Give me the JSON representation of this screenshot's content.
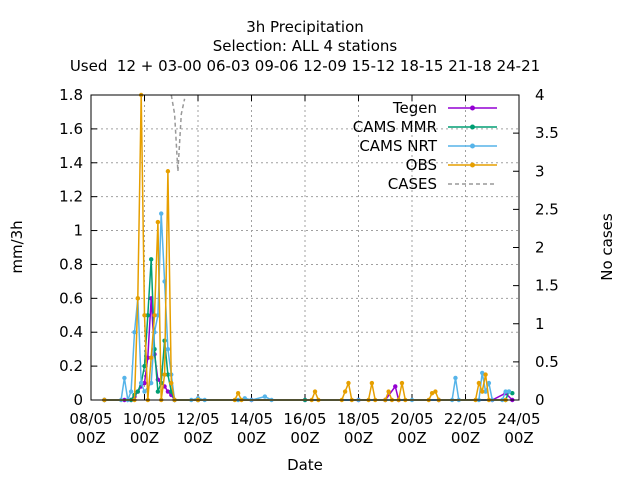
{
  "chart_data": {
    "type": "line",
    "title_lines": [
      "3h Precipitation",
      "Selection: ALL       4 stations",
      "Used  12 + 03-00 06-03 09-06 12-09 15-12 18-15 21-18 24-21"
    ],
    "xlabel": "Date",
    "ylabel": "mm/3h",
    "y2label": "No cases",
    "ylim": [
      0,
      1.8
    ],
    "y2lim": [
      0,
      4
    ],
    "xlim": [
      0,
      16
    ],
    "x_ticks": [
      {
        "x": 0,
        "label": [
          "08/05",
          "00Z"
        ]
      },
      {
        "x": 2,
        "label": [
          "10/05",
          "00Z"
        ]
      },
      {
        "x": 4,
        "label": [
          "12/05",
          "00Z"
        ]
      },
      {
        "x": 6,
        "label": [
          "14/05",
          "00Z"
        ]
      },
      {
        "x": 8,
        "label": [
          "16/05",
          "00Z"
        ]
      },
      {
        "x": 10,
        "label": [
          "18/05",
          "00Z"
        ]
      },
      {
        "x": 12,
        "label": [
          "20/05",
          "00Z"
        ]
      },
      {
        "x": 14,
        "label": [
          "22/05",
          "00Z"
        ]
      },
      {
        "x": 16,
        "label": [
          "24/05",
          "00Z"
        ]
      }
    ],
    "y_ticks": [
      "0",
      "0.2",
      "0.4",
      "0.6",
      "0.8",
      "1",
      "1.2",
      "1.4",
      "1.6",
      "1.8"
    ],
    "y2_ticks": [
      "0",
      "0.5",
      "1",
      "1.5",
      "2",
      "2.5",
      "3",
      "3.5",
      "4"
    ],
    "grid": true,
    "legend_position": "top-right",
    "series": [
      {
        "name": "Tegen",
        "color": "#9400d3",
        "axis": "y",
        "dashed": false,
        "points": [
          [
            0.5,
            0
          ],
          [
            1.25,
            0
          ],
          [
            1.5,
            0
          ],
          [
            1.625,
            0.02
          ],
          [
            1.75,
            0.05
          ],
          [
            1.875,
            0.08
          ],
          [
            2,
            0.1
          ],
          [
            2.125,
            0.25
          ],
          [
            2.25,
            0.6
          ],
          [
            2.375,
            0.27
          ],
          [
            2.5,
            0.12
          ],
          [
            2.625,
            0.1
          ],
          [
            2.75,
            0.08
          ],
          [
            2.875,
            0.05
          ],
          [
            3,
            0.03
          ],
          [
            3.125,
            0
          ],
          [
            4,
            0
          ],
          [
            6,
            0
          ],
          [
            8,
            0
          ],
          [
            10,
            0
          ],
          [
            11,
            0
          ],
          [
            11.375,
            0.08
          ],
          [
            11.5,
            0
          ],
          [
            13,
            0
          ],
          [
            15,
            0
          ],
          [
            15.5,
            0.04
          ],
          [
            15.75,
            0
          ]
        ]
      },
      {
        "name": "CAMS MMR",
        "color": "#009e73",
        "axis": "y",
        "dashed": false,
        "points": [
          [
            0.5,
            0
          ],
          [
            1.5,
            0
          ],
          [
            1.625,
            0.03
          ],
          [
            1.75,
            0.05
          ],
          [
            1.875,
            0.1
          ],
          [
            2,
            0.2
          ],
          [
            2.125,
            0.5
          ],
          [
            2.25,
            0.83
          ],
          [
            2.375,
            0.3
          ],
          [
            2.5,
            0.05
          ],
          [
            2.625,
            0.1
          ],
          [
            2.75,
            0.35
          ],
          [
            2.875,
            0.15
          ],
          [
            3,
            0.05
          ],
          [
            3.125,
            0
          ],
          [
            4,
            0
          ],
          [
            8,
            0
          ],
          [
            15.5,
            0
          ],
          [
            15.625,
            0.05
          ],
          [
            15.75,
            0.04
          ]
        ]
      },
      {
        "name": "CAMS NRT",
        "color": "#56b4e9",
        "axis": "y",
        "dashed": false,
        "points": [
          [
            0.5,
            0
          ],
          [
            1.125,
            0
          ],
          [
            1.25,
            0.13
          ],
          [
            1.375,
            0
          ],
          [
            1.5,
            0.05
          ],
          [
            1.625,
            0.4
          ],
          [
            1.75,
            0.6
          ],
          [
            1.875,
            0.1
          ],
          [
            2,
            0.05
          ],
          [
            2.25,
            0.1
          ],
          [
            2.375,
            0.4
          ],
          [
            2.5,
            0.5
          ],
          [
            2.625,
            1.1
          ],
          [
            2.75,
            0.7
          ],
          [
            2.875,
            0.3
          ],
          [
            3,
            0.15
          ],
          [
            3.125,
            0
          ],
          [
            3.75,
            0
          ],
          [
            4,
            0.01
          ],
          [
            4.25,
            0
          ],
          [
            5.5,
            0
          ],
          [
            5.75,
            0.01
          ],
          [
            6,
            0
          ],
          [
            6.5,
            0.02
          ],
          [
            6.75,
            0
          ],
          [
            10,
            0
          ],
          [
            11,
            0
          ],
          [
            12,
            0
          ],
          [
            13,
            0
          ],
          [
            13.5,
            0
          ],
          [
            13.625,
            0.13
          ],
          [
            13.75,
            0
          ],
          [
            14.5,
            0
          ],
          [
            14.625,
            0.16
          ],
          [
            14.75,
            0.05
          ],
          [
            14.875,
            0.1
          ],
          [
            15,
            0
          ],
          [
            15.375,
            0
          ],
          [
            15.5,
            0.05
          ],
          [
            15.625,
            0.05
          ]
        ]
      },
      {
        "name": "OBS",
        "color": "#e69f00",
        "axis": "y",
        "dashed": false,
        "points": [
          [
            0.5,
            0
          ],
          [
            1.625,
            0
          ],
          [
            1.75,
            0.6
          ],
          [
            1.875,
            1.8
          ],
          [
            2,
            0.5
          ],
          [
            2.125,
            0
          ],
          [
            2.25,
            0.25
          ],
          [
            2.375,
            0.5
          ],
          [
            2.5,
            1.05
          ],
          [
            2.625,
            0
          ],
          [
            2.75,
            0.15
          ],
          [
            2.875,
            1.35
          ],
          [
            3,
            0.1
          ],
          [
            3.125,
            0
          ],
          [
            4,
            0
          ],
          [
            5.375,
            0
          ],
          [
            5.5,
            0.04
          ],
          [
            5.625,
            0
          ],
          [
            8.25,
            0
          ],
          [
            8.375,
            0.05
          ],
          [
            8.5,
            0
          ],
          [
            9.375,
            0
          ],
          [
            9.5,
            0.05
          ],
          [
            9.625,
            0.1
          ],
          [
            9.75,
            0
          ],
          [
            10.375,
            0
          ],
          [
            10.5,
            0.1
          ],
          [
            10.625,
            0
          ],
          [
            11,
            0
          ],
          [
            11.125,
            0.05
          ],
          [
            11.25,
            0
          ],
          [
            11.5,
            0
          ],
          [
            11.625,
            0.1
          ],
          [
            11.75,
            0
          ],
          [
            12.625,
            0
          ],
          [
            12.75,
            0.04
          ],
          [
            12.875,
            0.05
          ],
          [
            13,
            0
          ],
          [
            14.375,
            0
          ],
          [
            14.5,
            0.1
          ],
          [
            14.625,
            0.05
          ],
          [
            14.75,
            0.15
          ],
          [
            14.875,
            0
          ],
          [
            15.5,
            0
          ]
        ]
      },
      {
        "name": "CASES",
        "color": "#999999",
        "axis": "y2",
        "dashed": true,
        "points": [
          [
            3,
            4
          ],
          [
            3.125,
            3.75
          ],
          [
            3.25,
            3
          ],
          [
            3.375,
            3.75
          ],
          [
            3.5,
            3.95
          ]
        ]
      }
    ]
  }
}
